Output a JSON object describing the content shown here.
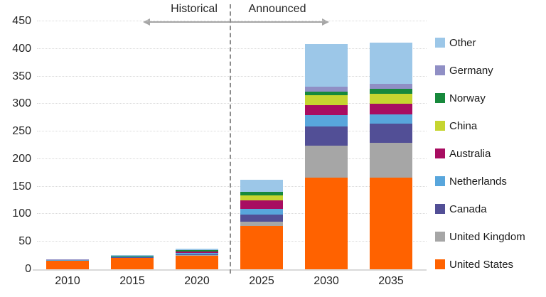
{
  "annotation": {
    "historical_label": "Historical",
    "announced_label": "Announced"
  },
  "y_axis": {
    "ticks": [
      0,
      50,
      100,
      150,
      200,
      250,
      300,
      350,
      400,
      450
    ]
  },
  "chart_data": {
    "type": "bar",
    "subtype": "stacked",
    "title": "",
    "xlabel": "",
    "ylabel": "",
    "ylim": [
      0,
      450
    ],
    "grid": "horizontal-dotted",
    "legend_position": "right",
    "legend_order_top_to_bottom": [
      "Other",
      "Germany",
      "Norway",
      "China",
      "Australia",
      "Netherlands",
      "Canada",
      "United Kingdom",
      "United States"
    ],
    "divider": {
      "style": "vertical-dashed",
      "between_categories": [
        "2020",
        "2025"
      ],
      "left_span_label": "Historical",
      "right_span_label": "Announced"
    },
    "categories": [
      "2010",
      "2015",
      "2020",
      "2025",
      "2030",
      "2035"
    ],
    "series": [
      {
        "name": "United States",
        "color": "#FF6200",
        "values": [
          15.5,
          20.5,
          24.5,
          79,
          166,
          166
        ]
      },
      {
        "name": "United Kingdom",
        "color": "#A6A6A6",
        "values": [
          0.2,
          0.3,
          0.8,
          8,
          58,
          64
        ]
      },
      {
        "name": "Canada",
        "color": "#524F96",
        "values": [
          0.3,
          1.3,
          2.2,
          12,
          35,
          34
        ]
      },
      {
        "name": "Netherlands",
        "color": "#58A6DC",
        "values": [
          0.6,
          0.8,
          1.8,
          10,
          21,
          17
        ]
      },
      {
        "name": "Australia",
        "color": "#A80D61",
        "values": [
          0.2,
          0.3,
          2.8,
          16,
          18,
          20
        ]
      },
      {
        "name": "China",
        "color": "#C6D530",
        "values": [
          0.1,
          0.2,
          0.8,
          9.5,
          18,
          18
        ]
      },
      {
        "name": "Norway",
        "color": "#17893C",
        "values": [
          0.6,
          1.3,
          1.4,
          5.5,
          7,
          9
        ]
      },
      {
        "name": "Germany",
        "color": "#908FC5",
        "values": [
          0.1,
          0.2,
          0.4,
          1,
          8,
          8
        ]
      },
      {
        "name": "Other",
        "color": "#9CC7E8",
        "values": [
          0.4,
          1.1,
          2.3,
          21,
          78,
          76
        ]
      }
    ],
    "totals": [
      18,
      26,
      37,
      162,
      409,
      412
    ]
  }
}
